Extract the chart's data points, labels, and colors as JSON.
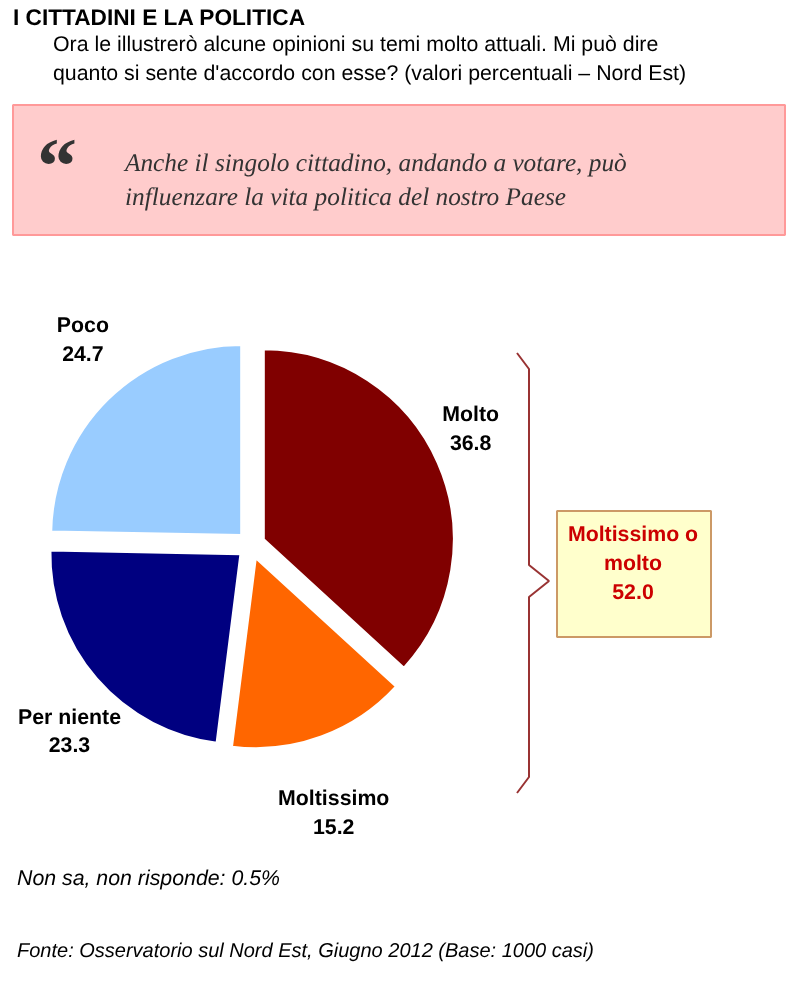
{
  "chart_data": {
    "type": "pie",
    "title": "I CITTADINI E LA POLITICA",
    "subtitle": "Ora le illustrerò alcune opinioni su temi molto attuali. Mi può dire quanto si sente d'accordo con esse? (valori percentuali – Nord Est)",
    "categories": [
      "Molto",
      "Moltissimo",
      "Per niente",
      "Poco"
    ],
    "values": [
      36.8,
      15.2,
      23.3,
      24.7
    ],
    "colors": [
      "#800000",
      "#ff6600",
      "#000080",
      "#99ccff"
    ],
    "data_labels": true,
    "annotations": [
      "“",
      "Anche il singolo cittadino, andando a votare, può influenzare la vita politica del nostro Paese",
      "Moltissimo o\nmolto\n52.0",
      "Non sa, non risponde: 0.5%",
      "Fonte: Osservatorio sul Nord Est, Giugno 2012 (Base: 1000 casi)"
    ]
  }
}
